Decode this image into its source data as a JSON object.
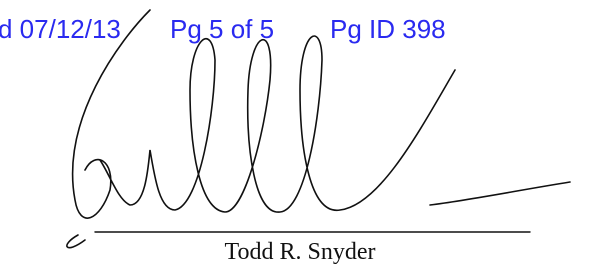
{
  "header": {
    "filed": "d 07/12/13",
    "page": "Pg 5 of 5",
    "page_id": "Pg ID 398"
  },
  "signature": {
    "name": "Todd R. Snyder"
  }
}
